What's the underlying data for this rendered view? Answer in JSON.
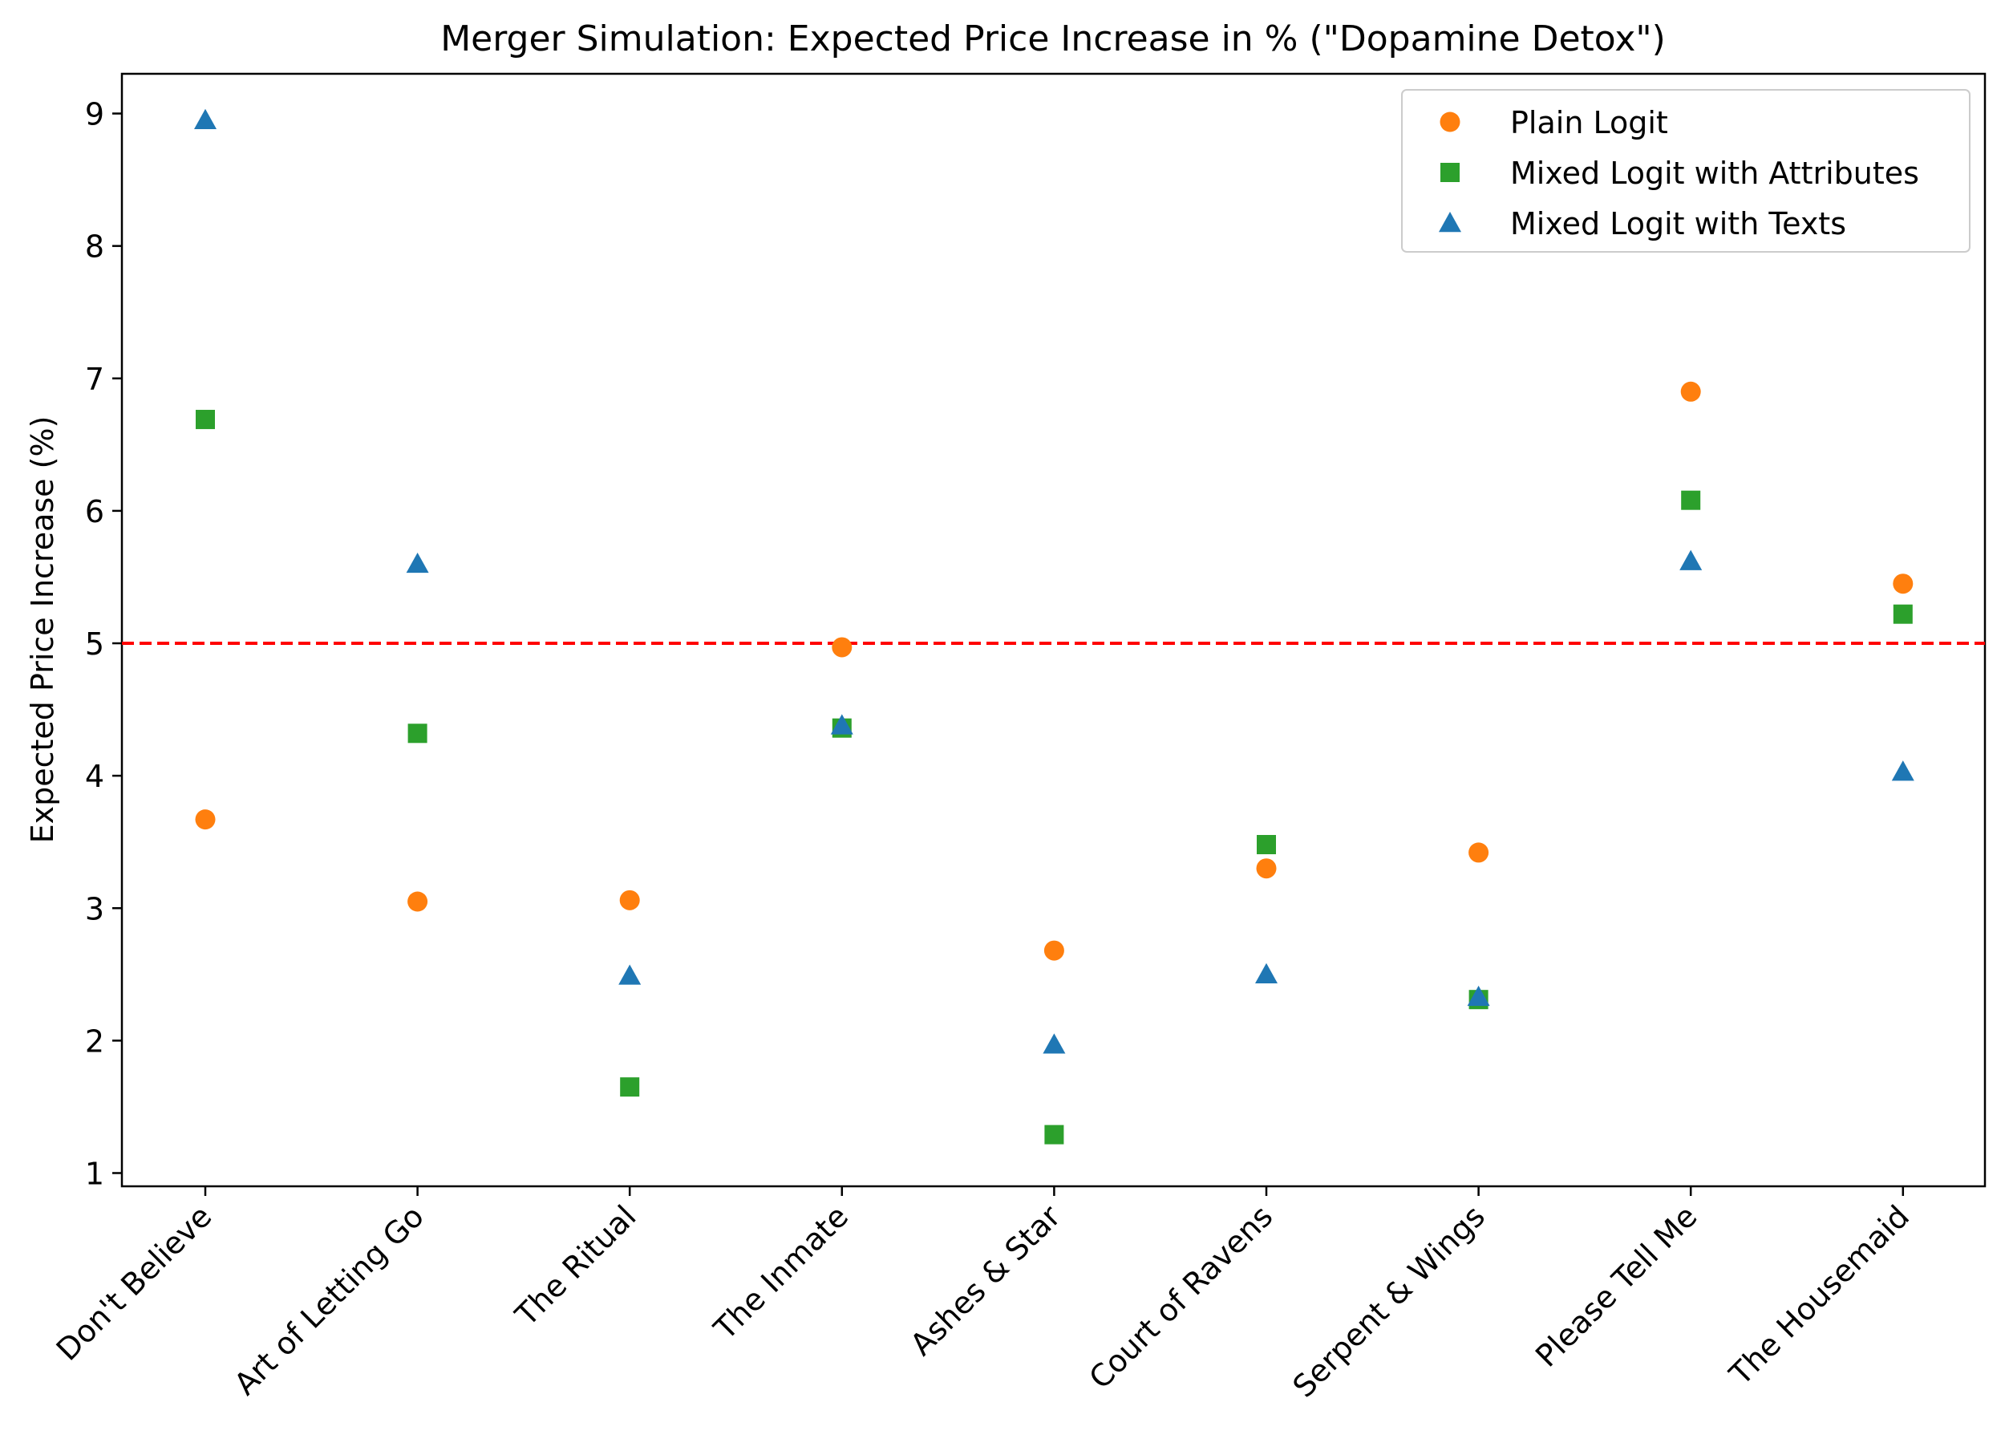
{
  "chart_data": {
    "type": "scatter",
    "title": "Merger Simulation: Expected Price Increase in % (\"Dopamine Detox\")",
    "xlabel": "",
    "ylabel": "Expected Price Increase (%)",
    "categories": [
      "Don't Believe",
      "Art of Letting Go",
      "The Ritual",
      "The Inmate",
      "Ashes & Star",
      "Court of Ravens",
      "Serpent & Wings",
      "Please Tell Me",
      "The Housemaid"
    ],
    "ylim": [
      0.9,
      9.3
    ],
    "yticks": [
      1,
      2,
      3,
      4,
      5,
      6,
      7,
      8,
      9
    ],
    "grid": false,
    "legend_position": "top-right",
    "reference_line": {
      "y": 5,
      "color": "#ff0000",
      "style": "dashed"
    },
    "series": [
      {
        "name": "Plain Logit",
        "marker": "circle",
        "color": "#ff7f0e",
        "values": [
          3.67,
          3.05,
          3.06,
          4.97,
          2.68,
          3.3,
          3.42,
          6.9,
          5.45
        ]
      },
      {
        "name": "Mixed Logit with Attributes",
        "marker": "square",
        "color": "#2ca02c",
        "values": [
          6.69,
          4.32,
          1.65,
          4.36,
          1.29,
          3.48,
          2.31,
          6.08,
          5.22
        ]
      },
      {
        "name": "Mixed Logit with Texts",
        "marker": "triangle",
        "color": "#1f77b4",
        "values": [
          8.95,
          5.6,
          2.49,
          4.38,
          1.97,
          2.5,
          2.33,
          5.62,
          4.03
        ]
      }
    ]
  }
}
